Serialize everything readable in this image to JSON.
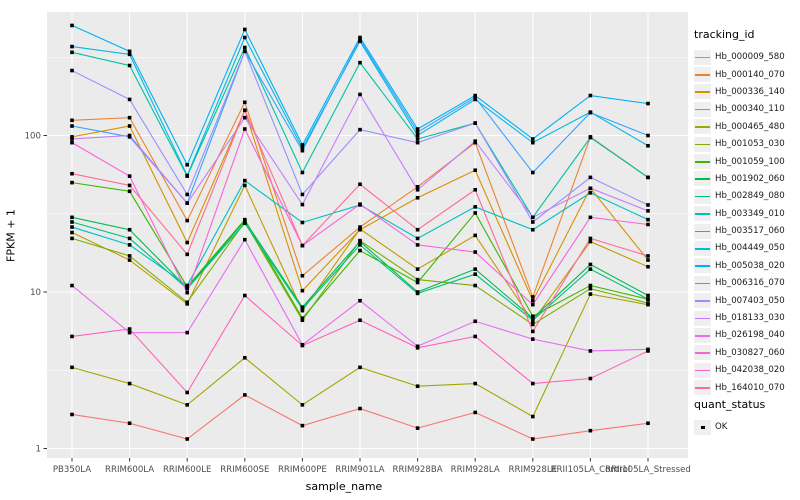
{
  "figure": {
    "xlabel": "sample_name",
    "ylabel": "FPKM + 1",
    "legend_color_title": "tracking_id",
    "legend_shape_title": "quant_status",
    "legend_shape_item": "OK"
  },
  "style": {
    "panel_bg": "#EBEBEB",
    "grid_color": "#FFFFFF",
    "tick_color": "#333333",
    "tick_label_color": "#4D4D4D",
    "point_color": "#000000",
    "legend_key_bg": "#EFEFEF"
  },
  "chart_data": {
    "type": "line",
    "title": "",
    "xlabel": "sample_name",
    "ylabel": "FPKM + 1",
    "y_scale": "log10",
    "y_ticks": [
      1,
      10,
      100
    ],
    "ylim": [
      0.95,
      560
    ],
    "grid": true,
    "legend_position": "right",
    "point_shape": "filled-square-black",
    "x_categories": [
      "PB350LA",
      "RRIM600LA",
      "RRIM600LE",
      "RRIM600SE",
      "RRIM600PE",
      "RRIM901LA",
      "RRIM928BA",
      "RRIM928LA",
      "RRIM928LE",
      "RRII105LA_Control",
      "RRII105LA_Stressed"
    ],
    "quant_status_values": [
      "OK"
    ],
    "series": [
      {
        "name": "Hb_000009_580",
        "color": "#F8766D",
        "quant_status": "OK",
        "values": [
          1.65,
          1.45,
          1.15,
          2.2,
          1.4,
          1.8,
          1.35,
          1.7,
          1.15,
          1.3,
          1.45
        ]
      },
      {
        "name": "Hb_000140_070",
        "color": "#EA8331",
        "quant_status": "OK",
        "values": [
          125,
          130,
          28.6,
          163,
          12.7,
          26,
          47,
          90,
          9.3,
          98,
          54
        ]
      },
      {
        "name": "Hb_000336_140",
        "color": "#D89000",
        "quant_status": "OK",
        "values": [
          98,
          115,
          20.7,
          145,
          10.2,
          25,
          40,
          60,
          8.8,
          46,
          16
        ]
      },
      {
        "name": "Hb_000340_110",
        "color": "#C09B00",
        "quant_status": "OK",
        "values": [
          24,
          16,
          8.4,
          48,
          7.6,
          25.3,
          14,
          23,
          6.5,
          21,
          14.5
        ]
      },
      {
        "name": "Hb_000465_480",
        "color": "#A3A500",
        "quant_status": "OK",
        "values": [
          3.3,
          2.6,
          1.9,
          3.8,
          1.9,
          3.3,
          2.5,
          2.6,
          1.6,
          9.7,
          8.3
        ]
      },
      {
        "name": "Hb_001053_030",
        "color": "#7CAE00",
        "quant_status": "OK",
        "values": [
          22,
          17,
          8.6,
          28,
          6.6,
          21.3,
          12,
          11,
          6.2,
          10.5,
          8.5
        ]
      },
      {
        "name": "Hb_001059_100",
        "color": "#39B600",
        "quant_status": "OK",
        "values": [
          50,
          44,
          10.8,
          29,
          6.8,
          18.4,
          11.5,
          32,
          7,
          11,
          9
        ]
      },
      {
        "name": "Hb_001902_060",
        "color": "#00BB4E",
        "quant_status": "OK",
        "values": [
          30,
          25,
          10.6,
          28.5,
          8,
          21,
          10,
          14,
          6.8,
          15,
          9.5
        ]
      },
      {
        "name": "Hb_002849_080",
        "color": "#00BF7D",
        "quant_status": "OK",
        "values": [
          28,
          22,
          10.5,
          27.5,
          7.8,
          20,
          9.8,
          13,
          6.6,
          14,
          9
        ]
      },
      {
        "name": "Hb_003349_010",
        "color": "#00C1A3",
        "quant_status": "OK",
        "values": [
          340,
          280,
          55,
          365,
          58,
          292,
          95,
          120,
          30,
          97,
          54
        ]
      },
      {
        "name": "Hb_003517_060",
        "color": "#00BFC4",
        "quant_status": "OK",
        "values": [
          26,
          20,
          11,
          51.5,
          27.8,
          36,
          22,
          35,
          25,
          43,
          29
        ]
      },
      {
        "name": "Hb_004449_050",
        "color": "#00BAE0",
        "quant_status": "OK",
        "values": [
          370,
          330,
          55.5,
          423,
          83,
          400,
          100,
          170,
          90,
          141,
          86
        ]
      },
      {
        "name": "Hb_005038_020",
        "color": "#00B0F6",
        "quant_status": "OK",
        "values": [
          505,
          345,
          65,
          476,
          87,
          423,
          110,
          180,
          95,
          180,
          160
        ]
      },
      {
        "name": "Hb_006316_070",
        "color": "#35A2FF",
        "quant_status": "OK",
        "values": [
          115,
          98,
          37,
          345,
          80,
          410,
          105,
          175,
          58,
          140,
          100
        ]
      },
      {
        "name": "Hb_007403_050",
        "color": "#9590FF",
        "quant_status": "OK",
        "values": [
          260,
          170,
          42,
          345,
          42,
          109,
          90,
          120,
          28,
          54,
          36
        ]
      },
      {
        "name": "Hb_018133_030",
        "color": "#C77CFF",
        "quant_status": "OK",
        "values": [
          95,
          100,
          37,
          130,
          36.2,
          183,
          45,
          92,
          30,
          46,
          33
        ]
      },
      {
        "name": "Hb_026198_040",
        "color": "#E76BF3",
        "quant_status": "OK",
        "values": [
          11,
          5.5,
          5.5,
          21.6,
          4.6,
          8.8,
          4.5,
          6.5,
          5,
          4.2,
          4.3
        ]
      },
      {
        "name": "Hb_030827_060",
        "color": "#FA62DB",
        "quant_status": "OK",
        "values": [
          90,
          55,
          9.9,
          110,
          19.8,
          36.4,
          20,
          18,
          8.3,
          30,
          27
        ]
      },
      {
        "name": "Hb_042038_020",
        "color": "#FF62BC",
        "quant_status": "OK",
        "values": [
          5.2,
          5.8,
          2.28,
          9.5,
          4.55,
          6.6,
          4.4,
          5.2,
          2.6,
          2.8,
          4.2
        ]
      },
      {
        "name": "Hb_164010_070",
        "color": "#FF6A98",
        "quant_status": "OK",
        "values": [
          57,
          48,
          17.4,
          145,
          19.8,
          48.8,
          25,
          45,
          5.6,
          22,
          17
        ]
      }
    ]
  }
}
